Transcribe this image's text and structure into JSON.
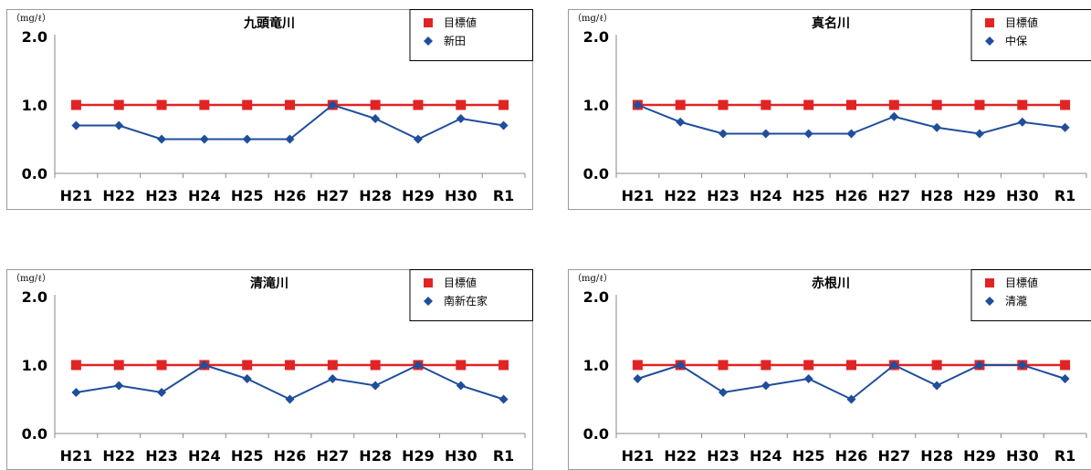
{
  "chart_data": [
    {
      "type": "line",
      "title": "九頭竜川",
      "unit_label": "（mg/ℓ）",
      "categories": [
        "H21",
        "H22",
        "H23",
        "H24",
        "H25",
        "H26",
        "H27",
        "H28",
        "H29",
        "H30",
        "R1"
      ],
      "y_ticks": [
        "0.0",
        "1.0",
        "2.0"
      ],
      "ylim": [
        0,
        2.0
      ],
      "legend_position": "top-right",
      "series": [
        {
          "name": "目標値",
          "color": "#e02424",
          "marker": "square",
          "values": [
            1.0,
            1.0,
            1.0,
            1.0,
            1.0,
            1.0,
            1.0,
            1.0,
            1.0,
            1.0,
            1.0
          ]
        },
        {
          "name": "新田",
          "color": "#1f4e9c",
          "marker": "diamond",
          "values": [
            0.7,
            0.7,
            0.5,
            0.5,
            0.5,
            0.5,
            1.0,
            0.8,
            0.5,
            0.8,
            0.7
          ]
        }
      ]
    },
    {
      "type": "line",
      "title": "真名川",
      "unit_label": "（mg/ℓ）",
      "categories": [
        "H21",
        "H22",
        "H23",
        "H24",
        "H25",
        "H26",
        "H27",
        "H28",
        "H29",
        "H30",
        "R1"
      ],
      "y_ticks": [
        "0.0",
        "1.0",
        "2.0"
      ],
      "ylim": [
        0,
        2.0
      ],
      "legend_position": "top-right",
      "series": [
        {
          "name": "目標値",
          "color": "#e02424",
          "marker": "square",
          "values": [
            1.0,
            1.0,
            1.0,
            1.0,
            1.0,
            1.0,
            1.0,
            1.0,
            1.0,
            1.0,
            1.0
          ]
        },
        {
          "name": "中保",
          "color": "#1f4e9c",
          "marker": "diamond",
          "values": [
            1.0,
            0.75,
            0.58,
            0.58,
            0.58,
            0.58,
            0.83,
            0.67,
            0.58,
            0.75,
            0.67
          ]
        }
      ]
    },
    {
      "type": "line",
      "title": "清滝川",
      "unit_label": "（mg/ℓ）",
      "categories": [
        "H21",
        "H22",
        "H23",
        "H24",
        "H25",
        "H26",
        "H27",
        "H28",
        "H29",
        "H30",
        "R1"
      ],
      "y_ticks": [
        "0.0",
        "1.0",
        "2.0"
      ],
      "ylim": [
        0,
        2.0
      ],
      "legend_position": "top-right",
      "series": [
        {
          "name": "目標値",
          "color": "#e02424",
          "marker": "square",
          "values": [
            1.0,
            1.0,
            1.0,
            1.0,
            1.0,
            1.0,
            1.0,
            1.0,
            1.0,
            1.0,
            1.0
          ]
        },
        {
          "name": "南新在家",
          "color": "#1f4e9c",
          "marker": "diamond",
          "values": [
            0.6,
            0.7,
            0.6,
            1.0,
            0.8,
            0.5,
            0.8,
            0.7,
            1.0,
            0.7,
            0.5
          ]
        }
      ]
    },
    {
      "type": "line",
      "title": "赤根川",
      "unit_label": "（mg/ℓ）",
      "categories": [
        "H21",
        "H22",
        "H23",
        "H24",
        "H25",
        "H26",
        "H27",
        "H28",
        "H29",
        "H30",
        "R1"
      ],
      "y_ticks": [
        "0.0",
        "1.0",
        "2.0"
      ],
      "ylim": [
        0,
        2.0
      ],
      "legend_position": "top-right",
      "series": [
        {
          "name": "目標値",
          "color": "#e02424",
          "marker": "square",
          "values": [
            1.0,
            1.0,
            1.0,
            1.0,
            1.0,
            1.0,
            1.0,
            1.0,
            1.0,
            1.0,
            1.0
          ]
        },
        {
          "name": "清瀧",
          "color": "#1f4e9c",
          "marker": "diamond",
          "values": [
            0.8,
            1.0,
            0.6,
            0.7,
            0.8,
            0.5,
            1.0,
            0.7,
            1.0,
            1.0,
            0.8
          ]
        }
      ]
    }
  ]
}
